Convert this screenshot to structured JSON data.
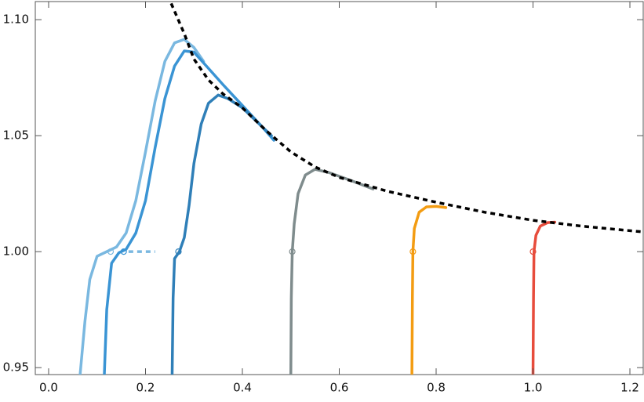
{
  "chart_data": {
    "type": "line",
    "xlim": [
      -0.0275,
      1.2275
    ],
    "ylim": [
      0.947,
      1.1078
    ],
    "xticks": [
      {
        "value": 0,
        "label": "0.0"
      },
      0.2,
      0.4,
      0.6,
      0.8,
      {
        "value": 1,
        "label": "1.0"
      },
      1.2
    ],
    "yticks": [
      0.95,
      {
        "value": 1,
        "label": "1.00"
      },
      1.05,
      {
        "value": 1.1,
        "label": "1.10"
      }
    ],
    "grid": false,
    "series": [
      {
        "color": "#7ab8e0",
        "dash": false,
        "x": [
          0.065,
          0.075,
          0.085,
          0.1,
          0.12,
          0.14,
          0.16,
          0.18,
          0.2,
          0.22,
          0.24,
          0.26,
          0.28,
          0.3,
          0.32
        ],
        "values": [
          0.947,
          0.97,
          0.988,
          0.998,
          1.0,
          1.002,
          1.008,
          1.022,
          1.043,
          1.065,
          1.082,
          1.09,
          1.0915,
          1.088,
          1.082
        ],
        "marker_x": 0.128,
        "marker_y": 1.0
      },
      {
        "color": "#7ab8e0",
        "dash": true,
        "x": [
          0.165,
          0.22
        ],
        "values": [
          1.0,
          1.0
        ]
      },
      {
        "color": "#3a94d4",
        "dash": false,
        "x": [
          0.115,
          0.12,
          0.13,
          0.145,
          0.16,
          0.18,
          0.2,
          0.22,
          0.24,
          0.26,
          0.28,
          0.3,
          0.33,
          0.36,
          0.4,
          0.44,
          0.465
        ],
        "values": [
          0.947,
          0.975,
          0.995,
          0.9995,
          1.001,
          1.008,
          1.022,
          1.045,
          1.066,
          1.08,
          1.0865,
          1.086,
          1.079,
          1.072,
          1.063,
          1.054,
          1.048
        ],
        "marker_x": 0.155,
        "marker_y": 1.0
      },
      {
        "color": "#2f7fb8",
        "dash": false,
        "x": [
          0.255,
          0.257,
          0.26,
          0.27,
          0.28,
          0.29,
          0.3,
          0.315,
          0.33,
          0.35,
          0.37,
          0.4,
          0.43,
          0.46
        ],
        "values": [
          0.947,
          0.98,
          0.997,
          1.0,
          1.006,
          1.02,
          1.038,
          1.055,
          1.064,
          1.0675,
          1.066,
          1.062,
          1.056,
          1.05
        ],
        "marker_x": 0.268,
        "marker_y": 1.0
      },
      {
        "color": "#7f8c8d",
        "dash": false,
        "x": [
          0.5,
          0.501,
          0.503,
          0.507,
          0.515,
          0.53,
          0.55,
          0.58,
          0.62,
          0.67
        ],
        "values": [
          0.947,
          0.98,
          1.0,
          1.012,
          1.025,
          1.033,
          1.0355,
          1.034,
          1.031,
          1.027
        ],
        "marker_x": 0.503,
        "marker_y": 1.0
      },
      {
        "color": "#f39c12",
        "dash": false,
        "x": [
          0.75,
          0.751,
          0.752,
          0.755,
          0.765,
          0.78,
          0.8,
          0.82
        ],
        "values": [
          0.947,
          0.98,
          1.0,
          1.01,
          1.017,
          1.0193,
          1.0195,
          1.019
        ],
        "marker_x": 0.752,
        "marker_y": 1.0
      },
      {
        "color": "#e74c3c",
        "dash": false,
        "x": [
          1.0,
          1.001,
          1.002,
          1.006,
          1.015,
          1.03,
          1.045
        ],
        "values": [
          0.947,
          0.98,
          1.0,
          1.007,
          1.011,
          1.0125,
          1.0127
        ],
        "marker_x": 1.0,
        "marker_y": 1.0
      },
      {
        "color": "#000000",
        "dash": true,
        "x": [
          0.253,
          0.28,
          0.3,
          0.33,
          0.36,
          0.4,
          0.45,
          0.5,
          0.55,
          0.6,
          0.7,
          0.8,
          0.9,
          1.0,
          1.1,
          1.227
        ],
        "values": [
          1.107,
          1.094,
          1.083,
          1.074,
          1.068,
          1.062,
          1.052,
          1.043,
          1.0365,
          1.032,
          1.026,
          1.0213,
          1.017,
          1.0135,
          1.011,
          1.0085
        ]
      }
    ]
  }
}
